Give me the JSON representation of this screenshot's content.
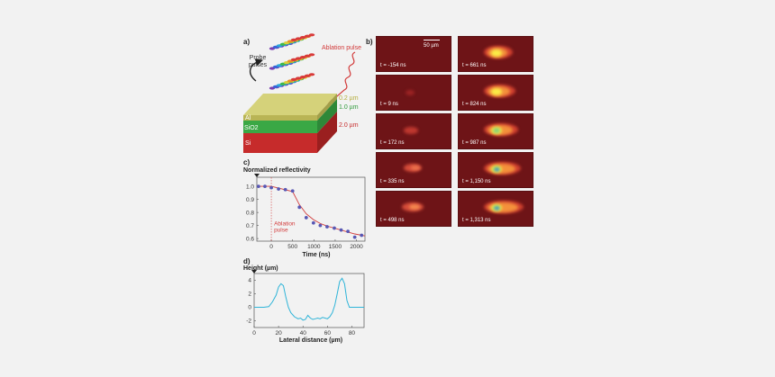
{
  "panel_a": {
    "letter": "a)",
    "probe_label_line1": "Probe",
    "probe_label_line2": "pulses",
    "ablation_label": "Ablation pulse",
    "layers": [
      {
        "name": "Al",
        "thickness": "0.2 µm",
        "color": "#c8c86a"
      },
      {
        "name": "SiO2",
        "thickness": "1.0 µm",
        "color": "#3aa845"
      },
      {
        "name": "Si",
        "thickness": "2.0 µm",
        "color": "#c62b2b"
      }
    ]
  },
  "panel_b": {
    "letter": "b)",
    "scalebar": "50 µm",
    "frames_left": [
      "t = -154 ns",
      "t = 9 ns",
      "t = 172 ns",
      "t = 335 ns",
      "t = 498 ns"
    ],
    "frames_right": [
      "t = 661 ns",
      "t = 824 ns",
      "t = 987 ns",
      "t = 1,150 ns",
      "t = 1,313 ns"
    ]
  },
  "panel_c": {
    "letter": "c)",
    "title": "Normalized reflectivity",
    "xlabel": "Time (ns)",
    "annotation_line1": "Ablation",
    "annotation_line2": "pulse"
  },
  "panel_d": {
    "letter": "d)",
    "title": "Height (µm)",
    "xlabel": "Lateral distance (µm)"
  },
  "colors": {
    "points": "#5858b4",
    "fit": "#d23a3a",
    "profile": "#2eb4d8",
    "frame_bg": "#6e1417"
  },
  "chart_data": [
    {
      "type": "scatter",
      "title": "Normalized reflectivity",
      "xlabel": "Time (ns)",
      "ylabel": "",
      "xlim": [
        -340,
        2200
      ],
      "ylim": [
        0.58,
        1.07
      ],
      "xticks": [
        0,
        500,
        1000,
        1500,
        2000
      ],
      "yticks": [
        0.6,
        0.7,
        0.8,
        0.9,
        1.0
      ],
      "x": [
        -300,
        -150,
        0,
        170,
        330,
        500,
        660,
        820,
        990,
        1150,
        1310,
        1480,
        1640,
        1800,
        1960,
        2120
      ],
      "y": [
        1.0,
        1.0,
        0.99,
        0.98,
        0.975,
        0.965,
        0.84,
        0.76,
        0.72,
        0.7,
        0.69,
        0.68,
        0.665,
        0.655,
        0.61,
        0.625
      ],
      "fit_x": [
        -340,
        0,
        500,
        660,
        820,
        990,
        1150,
        1310,
        1480,
        1640,
        1800,
        1960,
        2200
      ],
      "fit_y": [
        1.0,
        1.0,
        0.96,
        0.86,
        0.79,
        0.745,
        0.715,
        0.695,
        0.68,
        0.665,
        0.65,
        0.635,
        0.62
      ]
    },
    {
      "type": "line",
      "title": "Height (µm)",
      "xlabel": "Lateral distance (µm)",
      "ylabel": "",
      "xlim": [
        0,
        90
      ],
      "ylim": [
        -3,
        5
      ],
      "xticks": [
        0,
        20,
        40,
        60,
        80
      ],
      "yticks": [
        -2,
        0,
        2,
        4
      ],
      "x": [
        0,
        8,
        12,
        15,
        18,
        20,
        22,
        24,
        26,
        28,
        30,
        33,
        36,
        38,
        40,
        42,
        44,
        46,
        48,
        50,
        52,
        54,
        56,
        58,
        60,
        62,
        64,
        66,
        68,
        70,
        72,
        74,
        76,
        78,
        80,
        84,
        88,
        90
      ],
      "y": [
        0,
        0,
        0.1,
        0.8,
        1.8,
        3.0,
        3.5,
        3.2,
        1.5,
        0,
        -0.8,
        -1.4,
        -1.7,
        -1.6,
        -1.9,
        -1.8,
        -1.2,
        -1.6,
        -1.8,
        -1.7,
        -1.6,
        -1.7,
        -1.5,
        -1.6,
        -1.7,
        -1.4,
        -0.8,
        0.3,
        2.0,
        3.8,
        4.3,
        3.5,
        1.0,
        0,
        0,
        0,
        0,
        0
      ]
    }
  ]
}
